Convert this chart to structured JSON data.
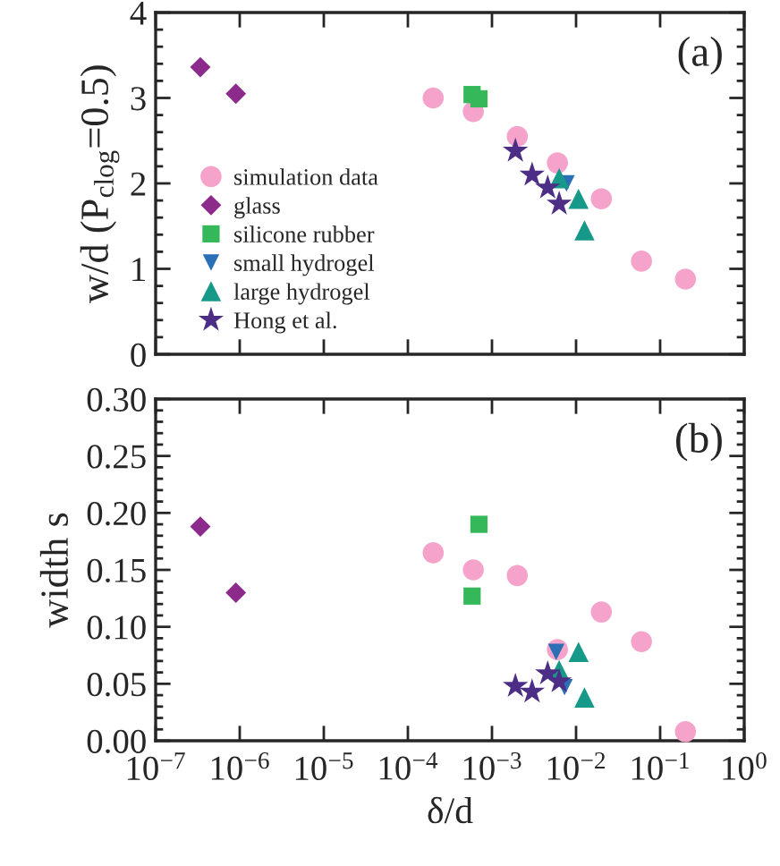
{
  "chart_data": [
    {
      "type": "scatter",
      "ylabel": "w/d (P$_{clog}$=0.5)",
      "annotations": [
        "(a)"
      ],
      "log": "x",
      "legend": "bottom left",
      "tick_labels": "y",
      "xlim": [
        1e-07,
        1
      ],
      "xticks": [
        {
          "value": 1e-07,
          "label": null
        },
        {
          "value": 1e-06,
          "label": null
        },
        {
          "value": 1e-05,
          "label": null
        },
        {
          "value": 0.0001,
          "label": null
        },
        {
          "value": 0.001,
          "label": null
        },
        {
          "value": 0.01,
          "label": null
        },
        {
          "value": 0.1,
          "label": null
        },
        {
          "value": 1,
          "label": null
        }
      ],
      "ylim": [
        0,
        4
      ],
      "yticks": [
        0,
        1,
        2,
        3,
        4
      ],
      "series": [
        {
          "name": "simulation data",
          "color": "#f5a3cb",
          "marker": "circle",
          "x": [
            0.0002,
            0.0006,
            0.002,
            0.006,
            0.02,
            0.06,
            0.2
          ],
          "values": [
            3.0,
            2.84,
            2.55,
            2.24,
            1.82,
            1.09,
            0.88
          ]
        },
        {
          "name": "glass",
          "color": "#8c2b8c",
          "marker": "diamond",
          "x": [
            3.4e-07,
            9e-07
          ],
          "values": [
            3.36,
            3.05
          ]
        },
        {
          "name": "silicone rubber",
          "color": "#34b85a",
          "marker": "square",
          "x": [
            0.00058,
            0.0007
          ],
          "values": [
            3.04,
            2.99
          ]
        },
        {
          "name": "small hydrogel",
          "color": "#2b6fb5",
          "marker": "triangle_down",
          "x": [
            0.0077
          ],
          "values": [
            2.0
          ]
        },
        {
          "name": "large hydrogel",
          "color": "#17998a",
          "marker": "triangle",
          "x": [
            0.0063,
            0.0107,
            0.0126
          ],
          "values": [
            2.06,
            1.82,
            1.45
          ]
        },
        {
          "name": "Hong et al.",
          "color": "#4d2e87",
          "marker": "star",
          "x": [
            0.0019,
            0.003,
            0.0046,
            0.0063
          ],
          "values": [
            2.38,
            2.1,
            1.95,
            1.76
          ]
        }
      ]
    },
    {
      "type": "scatter",
      "xlabel": "δ/d",
      "ylabel": "width s",
      "annotations": [
        "(b)"
      ],
      "log": "x",
      "xlim": [
        1e-07,
        1
      ],
      "xticks": [
        {
          "value": 1e-07,
          "label": "10$^{−7}$"
        },
        {
          "value": 1e-06,
          "label": "10$^{−6}$"
        },
        {
          "value": 1e-05,
          "label": "10$^{−5}$"
        },
        {
          "value": 0.0001,
          "label": "10$^{−4}$"
        },
        {
          "value": 0.001,
          "label": "10$^{−3}$"
        },
        {
          "value": 0.01,
          "label": "10$^{−2}$"
        },
        {
          "value": 0.1,
          "label": "10$^{−1}$"
        },
        {
          "value": 1,
          "label": "10$^{0}$"
        }
      ],
      "ylim": [
        0,
        0.3
      ],
      "yticks": [
        {
          "value": 0,
          "label": "0.00"
        },
        0.05,
        {
          "value": 0.1,
          "label": "0.10"
        },
        0.15,
        {
          "value": 0.2,
          "label": "0.20"
        },
        0.25,
        {
          "value": 0.3,
          "label": "0.30"
        }
      ],
      "series": [
        {
          "color": "#f5a3cb",
          "marker": "circle",
          "x": [
            0.0002,
            0.0006,
            0.002,
            0.006,
            0.02,
            0.06,
            0.2
          ],
          "values": [
            0.165,
            0.15,
            0.145,
            0.08,
            0.113,
            0.087,
            0.008
          ]
        },
        {
          "color": "#8c2b8c",
          "marker": "diamond",
          "x": [
            3.4e-07,
            9e-07
          ],
          "values": [
            0.188,
            0.13
          ]
        },
        {
          "color": "#34b85a",
          "marker": "square",
          "x": [
            0.00058,
            0.0007
          ],
          "values": [
            0.127,
            0.19
          ]
        },
        {
          "color": "#2b6fb5",
          "marker": "triangle_down",
          "x": [
            0.0058,
            0.0073
          ],
          "values": [
            0.078,
            0.047
          ]
        },
        {
          "color": "#17998a",
          "marker": "triangle",
          "x": [
            0.0063,
            0.0107,
            0.0126
          ],
          "values": [
            0.062,
            0.078,
            0.038
          ]
        },
        {
          "color": "#4d2e87",
          "marker": "star",
          "x": [
            0.0019,
            0.003,
            0.0046,
            0.0063
          ],
          "values": [
            0.048,
            0.043,
            0.059,
            0.052
          ]
        }
      ]
    }
  ]
}
